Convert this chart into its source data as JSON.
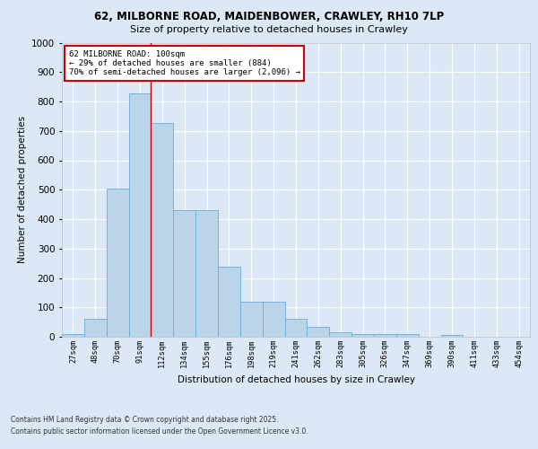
{
  "title_line1": "62, MILBORNE ROAD, MAIDENBOWER, CRAWLEY, RH10 7LP",
  "title_line2": "Size of property relative to detached houses in Crawley",
  "xlabel": "Distribution of detached houses by size in Crawley",
  "ylabel": "Number of detached properties",
  "categories": [
    "27sqm",
    "48sqm",
    "70sqm",
    "91sqm",
    "112sqm",
    "134sqm",
    "155sqm",
    "176sqm",
    "198sqm",
    "219sqm",
    "241sqm",
    "262sqm",
    "283sqm",
    "305sqm",
    "326sqm",
    "347sqm",
    "369sqm",
    "390sqm",
    "411sqm",
    "433sqm",
    "454sqm"
  ],
  "values": [
    8,
    62,
    505,
    828,
    728,
    430,
    430,
    238,
    118,
    118,
    60,
    35,
    14,
    10,
    8,
    8,
    0,
    5,
    0,
    0,
    0
  ],
  "bar_color": "#bad4ea",
  "bar_edge_color": "#6aaed6",
  "property_line_x": 3.5,
  "annotation_text": "62 MILBORNE ROAD: 100sqm\n← 29% of detached houses are smaller (884)\n70% of semi-detached houses are larger (2,096) →",
  "annotation_box_color": "#ffffff",
  "annotation_box_edge_color": "#cc0000",
  "vline_color": "#cc0000",
  "ylim": [
    0,
    1000
  ],
  "yticks": [
    0,
    100,
    200,
    300,
    400,
    500,
    600,
    700,
    800,
    900,
    1000
  ],
  "bg_color": "#dce8f5",
  "plot_bg_color": "#dce8f5",
  "footer_line1": "Contains HM Land Registry data © Crown copyright and database right 2025.",
  "footer_line2": "Contains public sector information licensed under the Open Government Licence v3.0."
}
